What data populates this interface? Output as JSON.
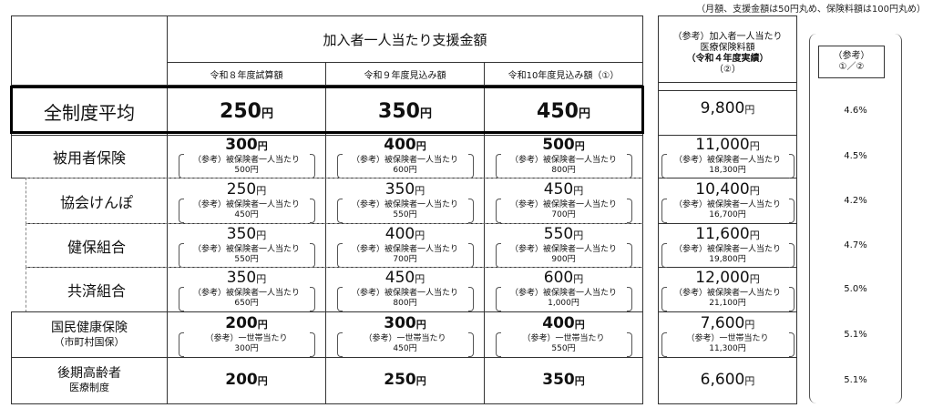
{
  "note": "（月額、支援金額は50円丸め、保険料額は100円丸め）",
  "header": {
    "title": "加入者一人当たり支援金額",
    "cols": [
      "令和８年度試算額",
      "令和９年度見込み額",
      "令和10年度見込み額（①）"
    ],
    "premium": [
      "（参考）加入者一人当たり",
      "医療保険料額",
      "（令和４年度実績）",
      "（②）"
    ],
    "ratio": [
      "（参考）",
      "①／②"
    ]
  },
  "yen": "円",
  "rows": [
    {
      "label": "全制度平均",
      "values": [
        "250",
        "350",
        "450"
      ],
      "premium": {
        "main": "9,800"
      },
      "ratio": "4.6%"
    },
    {
      "label": "被用者保険",
      "values": [
        "300",
        "400",
        "500"
      ],
      "bold": true,
      "note_label": "（参考）被保険者一人当たり",
      "notes": [
        "500円",
        "600円",
        "800円"
      ],
      "premium": {
        "main": "11,000",
        "note": "18,300円"
      },
      "ratio": "4.5%"
    },
    {
      "label": "協会けんぽ",
      "values": [
        "250",
        "350",
        "450"
      ],
      "note_label": "（参考）被保険者一人当たり",
      "notes": [
        "450円",
        "550円",
        "700円"
      ],
      "premium": {
        "main": "10,400",
        "note": "16,700円"
      },
      "ratio": "4.2%"
    },
    {
      "label": "健保組合",
      "values": [
        "350",
        "400",
        "550"
      ],
      "note_label": "（参考）被保険者一人当たり",
      "notes": [
        "550円",
        "700円",
        "900円"
      ],
      "premium": {
        "main": "11,600",
        "note": "19,800円"
      },
      "ratio": "4.7%"
    },
    {
      "label": "共済組合",
      "values": [
        "350",
        "450",
        "600"
      ],
      "note_label": "（参考）被保険者一人当たり",
      "notes": [
        "650円",
        "800円",
        "1,000円"
      ],
      "premium": {
        "main": "12,000",
        "note": "21,100円"
      },
      "ratio": "5.0%"
    },
    {
      "label": "国民健康保険",
      "label2": "（市町村国保）",
      "values": [
        "200",
        "300",
        "400"
      ],
      "bold": true,
      "note_label": "（参考）一世帯当たり",
      "notes": [
        "300円",
        "450円",
        "550円"
      ],
      "premium": {
        "main": "7,600",
        "note": "11,300円"
      },
      "ratio": "5.1%"
    },
    {
      "label": "後期高齢者",
      "label2": "医療制度",
      "values": [
        "200",
        "250",
        "350"
      ],
      "bold": true,
      "premium": {
        "main": "6,600"
      },
      "ratio": "5.1%"
    }
  ]
}
